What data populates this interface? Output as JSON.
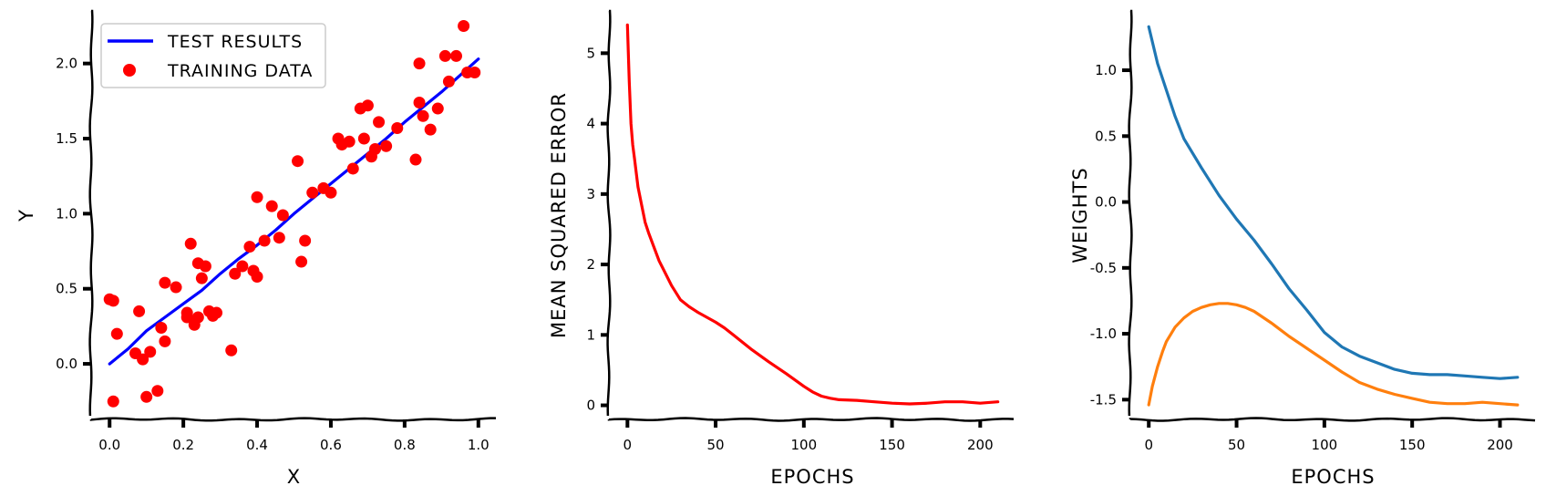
{
  "chart_data": [
    {
      "type": "scatter",
      "xlabel": "X",
      "ylabel": "Y",
      "xlim": [
        -0.05,
        1.05
      ],
      "ylim": [
        -0.37,
        2.35
      ],
      "xticks": [
        0.0,
        0.2,
        0.4,
        0.6,
        0.8,
        1.0
      ],
      "xtick_labels": [
        "0.0",
        "0.2",
        "0.4",
        "0.6",
        "0.8",
        "1.0"
      ],
      "yticks": [
        0.0,
        0.5,
        1.0,
        1.5,
        2.0
      ],
      "ytick_labels": [
        "0.0",
        "0.5",
        "1.0",
        "1.5",
        "2.0"
      ],
      "legend_position": "upper-left",
      "series": [
        {
          "name": "TEST RESULTS",
          "kind": "line",
          "color": "#0000ff",
          "x": [
            0.0,
            0.05,
            0.1,
            0.15,
            0.2,
            0.25,
            0.3,
            0.35,
            0.4,
            0.45,
            0.5,
            0.55,
            0.6,
            0.65,
            0.7,
            0.75,
            0.8,
            0.85,
            0.9,
            0.95,
            1.0
          ],
          "y": [
            0.0,
            0.1,
            0.22,
            0.31,
            0.4,
            0.49,
            0.6,
            0.7,
            0.79,
            0.89,
            1.0,
            1.1,
            1.2,
            1.3,
            1.4,
            1.5,
            1.61,
            1.71,
            1.81,
            1.92,
            2.03
          ]
        },
        {
          "name": "TRAINING DATA",
          "kind": "scatter",
          "color": "#ff0000",
          "x": [
            0.0,
            0.01,
            0.01,
            0.02,
            0.07,
            0.08,
            0.09,
            0.1,
            0.11,
            0.13,
            0.14,
            0.15,
            0.15,
            0.18,
            0.21,
            0.21,
            0.22,
            0.23,
            0.24,
            0.24,
            0.25,
            0.26,
            0.27,
            0.28,
            0.29,
            0.33,
            0.34,
            0.36,
            0.38,
            0.39,
            0.4,
            0.4,
            0.42,
            0.44,
            0.46,
            0.47,
            0.51,
            0.52,
            0.53,
            0.55,
            0.58,
            0.6,
            0.62,
            0.63,
            0.65,
            0.66,
            0.68,
            0.69,
            0.7,
            0.71,
            0.72,
            0.73,
            0.75,
            0.78,
            0.83,
            0.84,
            0.84,
            0.85,
            0.87,
            0.89,
            0.91,
            0.92,
            0.94,
            0.96,
            0.97,
            0.99
          ],
          "y": [
            0.43,
            -0.25,
            0.42,
            0.2,
            0.07,
            0.35,
            0.03,
            -0.22,
            0.08,
            -0.18,
            0.24,
            0.54,
            0.15,
            0.51,
            0.31,
            0.34,
            0.8,
            0.26,
            0.31,
            0.67,
            0.57,
            0.65,
            0.35,
            0.32,
            0.34,
            0.09,
            0.6,
            0.65,
            0.78,
            0.62,
            0.58,
            1.11,
            0.82,
            1.05,
            0.84,
            0.99,
            1.35,
            0.68,
            0.82,
            1.14,
            1.17,
            1.14,
            1.5,
            1.46,
            1.48,
            1.3,
            1.7,
            1.5,
            1.72,
            1.38,
            1.43,
            1.61,
            1.45,
            1.57,
            1.36,
            2.0,
            1.74,
            1.65,
            1.56,
            1.7,
            2.05,
            1.88,
            2.05,
            2.25,
            1.94,
            1.94
          ]
        }
      ]
    },
    {
      "type": "line",
      "xlabel": "EPOCHS",
      "ylabel": "MEAN SQUARED ERROR",
      "xlim": [
        -10.5,
        220.5
      ],
      "ylim": [
        -0.2,
        5.6
      ],
      "xticks": [
        0,
        50,
        100,
        150,
        200
      ],
      "xtick_labels": [
        "0",
        "50",
        "100",
        "150",
        "200"
      ],
      "yticks": [
        0,
        1,
        2,
        3,
        4,
        5
      ],
      "ytick_labels": [
        "0",
        "1",
        "2",
        "3",
        "4",
        "5"
      ],
      "series": [
        {
          "color": "#ff0000",
          "x": [
            0,
            1,
            2,
            3,
            4,
            5,
            6,
            8,
            10,
            12,
            15,
            18,
            20,
            25,
            30,
            35,
            40,
            45,
            50,
            55,
            60,
            70,
            80,
            90,
            100,
            105,
            110,
            115,
            120,
            130,
            140,
            150,
            160,
            170,
            180,
            190,
            200,
            210
          ],
          "y": [
            5.4,
            4.6,
            4.0,
            3.7,
            3.5,
            3.3,
            3.1,
            2.85,
            2.6,
            2.45,
            2.25,
            2.05,
            1.95,
            1.7,
            1.5,
            1.4,
            1.32,
            1.25,
            1.18,
            1.1,
            1.0,
            0.8,
            0.62,
            0.45,
            0.27,
            0.19,
            0.13,
            0.1,
            0.08,
            0.07,
            0.05,
            0.03,
            0.02,
            0.03,
            0.05,
            0.05,
            0.03,
            0.05
          ]
        }
      ]
    },
    {
      "type": "line",
      "xlabel": "EPOCHS",
      "ylabel": "WEIGHTS",
      "xlim": [
        -10.5,
        220.5
      ],
      "ylim": [
        -1.65,
        1.45
      ],
      "xticks": [
        0,
        50,
        100,
        150,
        200
      ],
      "xtick_labels": [
        "0",
        "50",
        "100",
        "150",
        "200"
      ],
      "yticks": [
        1.0,
        0.5,
        0.0,
        -0.5,
        -1.0,
        -1.5
      ],
      "ytick_labels": [
        "1.0",
        "0.5",
        "0.0",
        "-0.5",
        "-1.0",
        "-1.5"
      ],
      "series": [
        {
          "color": "#1f77b4",
          "x": [
            0,
            5,
            10,
            15,
            20,
            30,
            40,
            50,
            60,
            70,
            80,
            90,
            100,
            110,
            120,
            130,
            140,
            150,
            160,
            170,
            180,
            190,
            200,
            210
          ],
          "y": [
            1.33,
            1.05,
            0.85,
            0.65,
            0.48,
            0.26,
            0.05,
            -0.13,
            -0.29,
            -0.47,
            -0.66,
            -0.82,
            -0.99,
            -1.1,
            -1.17,
            -1.22,
            -1.27,
            -1.3,
            -1.31,
            -1.31,
            -1.32,
            -1.33,
            -1.34,
            -1.33
          ]
        },
        {
          "color": "#ff7f0e",
          "x": [
            0,
            2,
            5,
            8,
            10,
            15,
            20,
            25,
            30,
            35,
            40,
            45,
            50,
            55,
            60,
            70,
            80,
            90,
            100,
            110,
            120,
            130,
            140,
            150,
            160,
            170,
            180,
            190,
            200,
            210
          ],
          "y": [
            -1.54,
            -1.4,
            -1.25,
            -1.13,
            -1.06,
            -0.95,
            -0.88,
            -0.83,
            -0.8,
            -0.78,
            -0.77,
            -0.77,
            -0.78,
            -0.8,
            -0.83,
            -0.92,
            -1.02,
            -1.11,
            -1.2,
            -1.29,
            -1.37,
            -1.42,
            -1.46,
            -1.49,
            -1.52,
            -1.53,
            -1.53,
            -1.52,
            -1.53,
            -1.54
          ]
        }
      ]
    }
  ]
}
